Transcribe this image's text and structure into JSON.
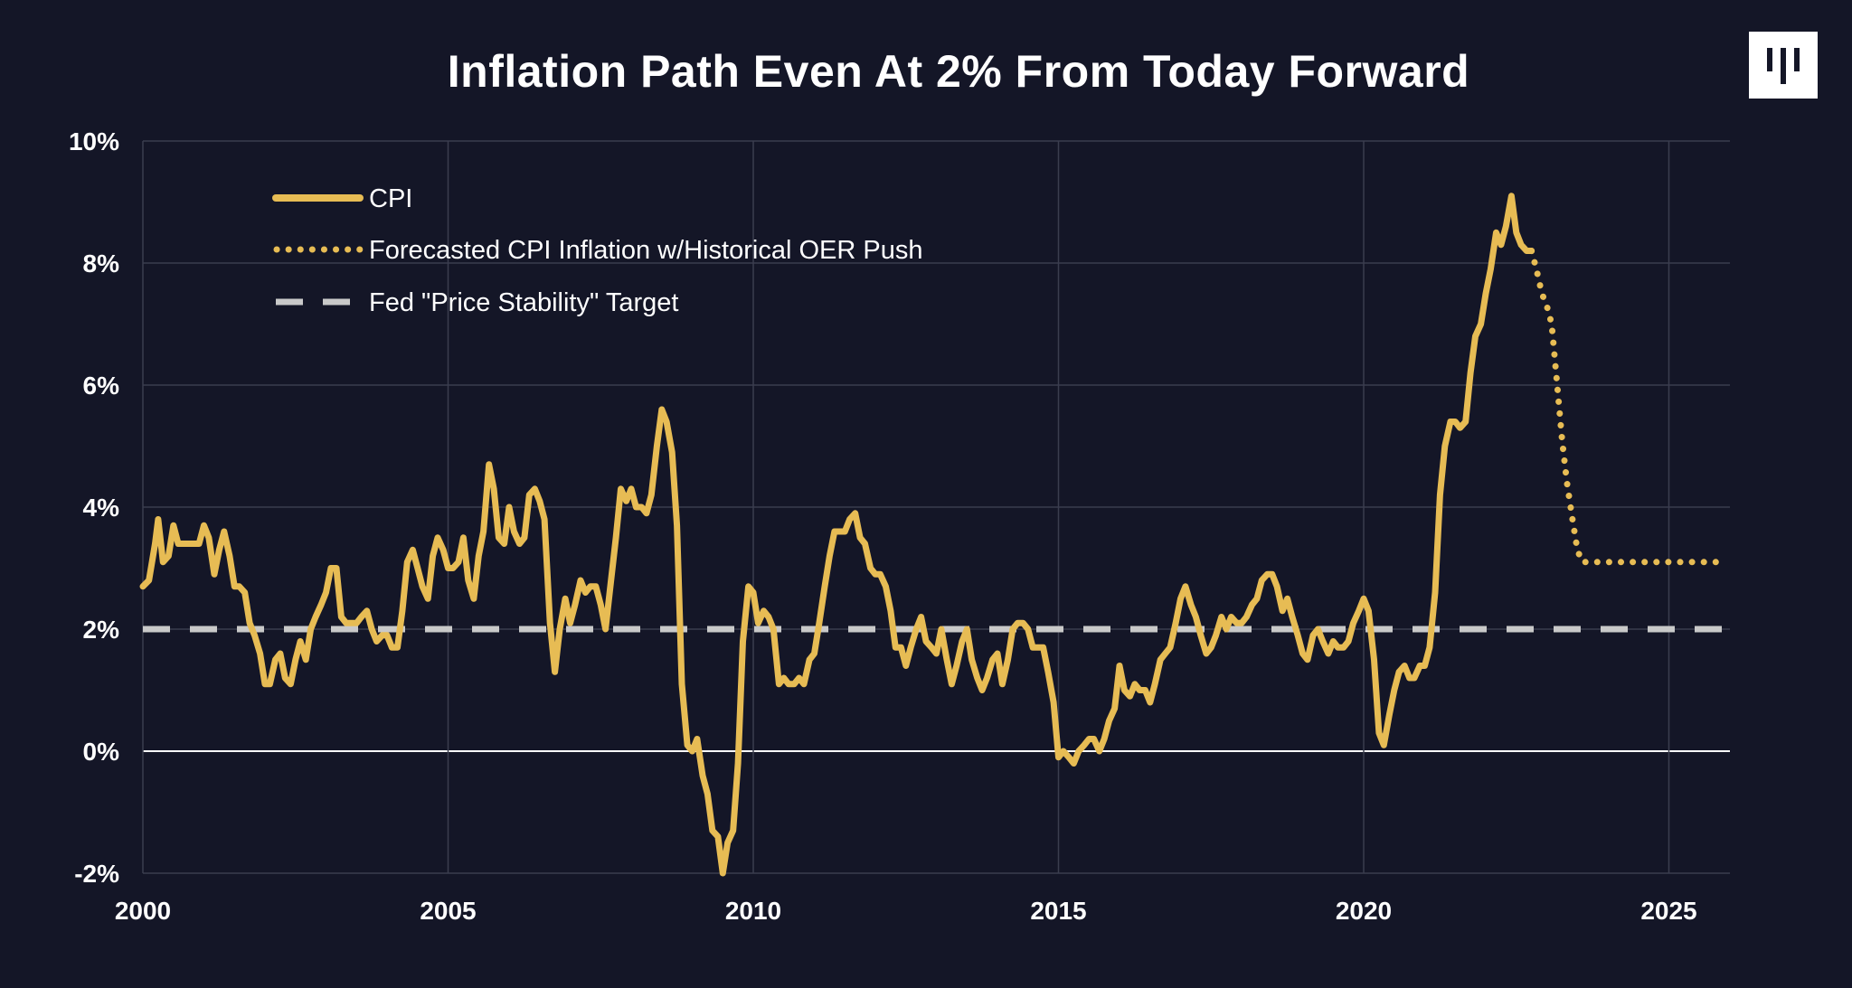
{
  "colors": {
    "background": "#141627",
    "cpi": "#E7BC54",
    "target": "#C9C9C9",
    "grid": "#3A3D4F",
    "zero_line": "#FFFFFF"
  },
  "logo": {
    "icon": "pantera-logo-icon"
  },
  "chart_data": {
    "type": "line",
    "title": "Inflation Path Even At 2% From Today Forward",
    "xlabel": "",
    "ylabel": "",
    "xlim": [
      2000,
      2026
    ],
    "ylim": [
      -2,
      10
    ],
    "x_ticks": [
      2000,
      2005,
      2010,
      2015,
      2020,
      2025
    ],
    "x_tick_labels": [
      "2000",
      "2005",
      "2010",
      "2015",
      "2020",
      "2025"
    ],
    "y_ticks": [
      -2,
      0,
      2,
      4,
      6,
      8,
      10
    ],
    "y_tick_labels": [
      "-2%",
      "0%",
      "2%",
      "4%",
      "6%",
      "8%",
      "10%"
    ],
    "grid": true,
    "legend_position": "top-left",
    "series": [
      {
        "name": "CPI",
        "style": "solid",
        "points": [
          [
            2000.0,
            2.7
          ],
          [
            2000.1,
            2.8
          ],
          [
            2000.2,
            3.4
          ],
          [
            2000.25,
            3.8
          ],
          [
            2000.33,
            3.1
          ],
          [
            2000.42,
            3.2
          ],
          [
            2000.5,
            3.7
          ],
          [
            2000.58,
            3.4
          ],
          [
            2000.67,
            3.4
          ],
          [
            2000.75,
            3.4
          ],
          [
            2000.83,
            3.4
          ],
          [
            2000.92,
            3.4
          ],
          [
            2001.0,
            3.7
          ],
          [
            2001.08,
            3.5
          ],
          [
            2001.17,
            2.9
          ],
          [
            2001.25,
            3.3
          ],
          [
            2001.33,
            3.6
          ],
          [
            2001.42,
            3.2
          ],
          [
            2001.5,
            2.7
          ],
          [
            2001.58,
            2.7
          ],
          [
            2001.67,
            2.6
          ],
          [
            2001.75,
            2.1
          ],
          [
            2001.83,
            1.9
          ],
          [
            2001.92,
            1.6
          ],
          [
            2002.0,
            1.1
          ],
          [
            2002.08,
            1.1
          ],
          [
            2002.17,
            1.5
          ],
          [
            2002.25,
            1.6
          ],
          [
            2002.33,
            1.2
          ],
          [
            2002.42,
            1.1
          ],
          [
            2002.5,
            1.5
          ],
          [
            2002.58,
            1.8
          ],
          [
            2002.67,
            1.5
          ],
          [
            2002.75,
            2.0
          ],
          [
            2002.83,
            2.2
          ],
          [
            2002.92,
            2.4
          ],
          [
            2003.0,
            2.6
          ],
          [
            2003.08,
            3.0
          ],
          [
            2003.17,
            3.0
          ],
          [
            2003.25,
            2.2
          ],
          [
            2003.33,
            2.1
          ],
          [
            2003.42,
            2.1
          ],
          [
            2003.5,
            2.1
          ],
          [
            2003.58,
            2.2
          ],
          [
            2003.67,
            2.3
          ],
          [
            2003.75,
            2.0
          ],
          [
            2003.83,
            1.8
          ],
          [
            2003.92,
            1.9
          ],
          [
            2004.0,
            1.9
          ],
          [
            2004.08,
            1.7
          ],
          [
            2004.17,
            1.7
          ],
          [
            2004.25,
            2.3
          ],
          [
            2004.33,
            3.1
          ],
          [
            2004.42,
            3.3
          ],
          [
            2004.5,
            3.0
          ],
          [
            2004.58,
            2.7
          ],
          [
            2004.67,
            2.5
          ],
          [
            2004.75,
            3.2
          ],
          [
            2004.83,
            3.5
          ],
          [
            2004.92,
            3.3
          ],
          [
            2005.0,
            3.0
          ],
          [
            2005.08,
            3.0
          ],
          [
            2005.17,
            3.1
          ],
          [
            2005.25,
            3.5
          ],
          [
            2005.33,
            2.8
          ],
          [
            2005.42,
            2.5
          ],
          [
            2005.5,
            3.2
          ],
          [
            2005.58,
            3.6
          ],
          [
            2005.67,
            4.7
          ],
          [
            2005.75,
            4.3
          ],
          [
            2005.83,
            3.5
          ],
          [
            2005.92,
            3.4
          ],
          [
            2006.0,
            4.0
          ],
          [
            2006.08,
            3.6
          ],
          [
            2006.17,
            3.4
          ],
          [
            2006.25,
            3.5
          ],
          [
            2006.33,
            4.2
          ],
          [
            2006.42,
            4.3
          ],
          [
            2006.5,
            4.1
          ],
          [
            2006.58,
            3.8
          ],
          [
            2006.67,
            2.1
          ],
          [
            2006.75,
            1.3
          ],
          [
            2006.83,
            2.0
          ],
          [
            2006.92,
            2.5
          ],
          [
            2007.0,
            2.1
          ],
          [
            2007.08,
            2.4
          ],
          [
            2007.17,
            2.8
          ],
          [
            2007.25,
            2.6
          ],
          [
            2007.33,
            2.7
          ],
          [
            2007.42,
            2.7
          ],
          [
            2007.5,
            2.4
          ],
          [
            2007.58,
            2.0
          ],
          [
            2007.67,
            2.8
          ],
          [
            2007.75,
            3.5
          ],
          [
            2007.83,
            4.3
          ],
          [
            2007.92,
            4.1
          ],
          [
            2008.0,
            4.3
          ],
          [
            2008.08,
            4.0
          ],
          [
            2008.17,
            4.0
          ],
          [
            2008.25,
            3.9
          ],
          [
            2008.33,
            4.2
          ],
          [
            2008.42,
            5.0
          ],
          [
            2008.5,
            5.6
          ],
          [
            2008.58,
            5.4
          ],
          [
            2008.67,
            4.9
          ],
          [
            2008.75,
            3.7
          ],
          [
            2008.83,
            1.1
          ],
          [
            2008.92,
            0.1
          ],
          [
            2009.0,
            0.0
          ],
          [
            2009.08,
            0.2
          ],
          [
            2009.17,
            -0.4
          ],
          [
            2009.25,
            -0.7
          ],
          [
            2009.33,
            -1.3
          ],
          [
            2009.42,
            -1.4
          ],
          [
            2009.5,
            -2.0
          ],
          [
            2009.58,
            -1.5
          ],
          [
            2009.67,
            -1.3
          ],
          [
            2009.75,
            -0.2
          ],
          [
            2009.83,
            1.8
          ],
          [
            2009.92,
            2.7
          ],
          [
            2010.0,
            2.6
          ],
          [
            2010.08,
            2.1
          ],
          [
            2010.17,
            2.3
          ],
          [
            2010.25,
            2.2
          ],
          [
            2010.33,
            2.0
          ],
          [
            2010.42,
            1.1
          ],
          [
            2010.5,
            1.2
          ],
          [
            2010.58,
            1.1
          ],
          [
            2010.67,
            1.1
          ],
          [
            2010.75,
            1.2
          ],
          [
            2010.83,
            1.1
          ],
          [
            2010.92,
            1.5
          ],
          [
            2011.0,
            1.6
          ],
          [
            2011.08,
            2.1
          ],
          [
            2011.17,
            2.7
          ],
          [
            2011.25,
            3.2
          ],
          [
            2011.33,
            3.6
          ],
          [
            2011.42,
            3.6
          ],
          [
            2011.5,
            3.6
          ],
          [
            2011.58,
            3.8
          ],
          [
            2011.67,
            3.9
          ],
          [
            2011.75,
            3.5
          ],
          [
            2011.83,
            3.4
          ],
          [
            2011.92,
            3.0
          ],
          [
            2012.0,
            2.9
          ],
          [
            2012.08,
            2.9
          ],
          [
            2012.17,
            2.7
          ],
          [
            2012.25,
            2.3
          ],
          [
            2012.33,
            1.7
          ],
          [
            2012.42,
            1.7
          ],
          [
            2012.5,
            1.4
          ],
          [
            2012.58,
            1.7
          ],
          [
            2012.67,
            2.0
          ],
          [
            2012.75,
            2.2
          ],
          [
            2012.83,
            1.8
          ],
          [
            2012.92,
            1.7
          ],
          [
            2013.0,
            1.6
          ],
          [
            2013.08,
            2.0
          ],
          [
            2013.17,
            1.5
          ],
          [
            2013.25,
            1.1
          ],
          [
            2013.33,
            1.4
          ],
          [
            2013.42,
            1.8
          ],
          [
            2013.5,
            2.0
          ],
          [
            2013.58,
            1.5
          ],
          [
            2013.67,
            1.2
          ],
          [
            2013.75,
            1.0
          ],
          [
            2013.83,
            1.2
          ],
          [
            2013.92,
            1.5
          ],
          [
            2014.0,
            1.6
          ],
          [
            2014.08,
            1.1
          ],
          [
            2014.17,
            1.5
          ],
          [
            2014.25,
            2.0
          ],
          [
            2014.33,
            2.1
          ],
          [
            2014.42,
            2.1
          ],
          [
            2014.5,
            2.0
          ],
          [
            2014.58,
            1.7
          ],
          [
            2014.67,
            1.7
          ],
          [
            2014.75,
            1.7
          ],
          [
            2014.83,
            1.3
          ],
          [
            2014.92,
            0.8
          ],
          [
            2015.0,
            -0.1
          ],
          [
            2015.08,
            0.0
          ],
          [
            2015.17,
            -0.1
          ],
          [
            2015.25,
            -0.2
          ],
          [
            2015.33,
            0.0
          ],
          [
            2015.42,
            0.1
          ],
          [
            2015.5,
            0.2
          ],
          [
            2015.58,
            0.2
          ],
          [
            2015.67,
            0.0
          ],
          [
            2015.75,
            0.2
          ],
          [
            2015.83,
            0.5
          ],
          [
            2015.92,
            0.7
          ],
          [
            2016.0,
            1.4
          ],
          [
            2016.08,
            1.0
          ],
          [
            2016.17,
            0.9
          ],
          [
            2016.25,
            1.1
          ],
          [
            2016.33,
            1.0
          ],
          [
            2016.42,
            1.0
          ],
          [
            2016.5,
            0.8
          ],
          [
            2016.58,
            1.1
          ],
          [
            2016.67,
            1.5
          ],
          [
            2016.75,
            1.6
          ],
          [
            2016.83,
            1.7
          ],
          [
            2016.92,
            2.1
          ],
          [
            2017.0,
            2.5
          ],
          [
            2017.08,
            2.7
          ],
          [
            2017.17,
            2.4
          ],
          [
            2017.25,
            2.2
          ],
          [
            2017.33,
            1.9
          ],
          [
            2017.42,
            1.6
          ],
          [
            2017.5,
            1.7
          ],
          [
            2017.58,
            1.9
          ],
          [
            2017.67,
            2.2
          ],
          [
            2017.75,
            2.0
          ],
          [
            2017.83,
            2.2
          ],
          [
            2017.92,
            2.1
          ],
          [
            2018.0,
            2.1
          ],
          [
            2018.08,
            2.2
          ],
          [
            2018.17,
            2.4
          ],
          [
            2018.25,
            2.5
          ],
          [
            2018.33,
            2.8
          ],
          [
            2018.42,
            2.9
          ],
          [
            2018.5,
            2.9
          ],
          [
            2018.58,
            2.7
          ],
          [
            2018.67,
            2.3
          ],
          [
            2018.75,
            2.5
          ],
          [
            2018.83,
            2.2
          ],
          [
            2018.92,
            1.9
          ],
          [
            2019.0,
            1.6
          ],
          [
            2019.08,
            1.5
          ],
          [
            2019.17,
            1.9
          ],
          [
            2019.25,
            2.0
          ],
          [
            2019.33,
            1.8
          ],
          [
            2019.42,
            1.6
          ],
          [
            2019.5,
            1.8
          ],
          [
            2019.58,
            1.7
          ],
          [
            2019.67,
            1.7
          ],
          [
            2019.75,
            1.8
          ],
          [
            2019.83,
            2.1
          ],
          [
            2019.92,
            2.3
          ],
          [
            2020.0,
            2.5
          ],
          [
            2020.08,
            2.3
          ],
          [
            2020.17,
            1.5
          ],
          [
            2020.25,
            0.3
          ],
          [
            2020.33,
            0.1
          ],
          [
            2020.42,
            0.6
          ],
          [
            2020.5,
            1.0
          ],
          [
            2020.58,
            1.3
          ],
          [
            2020.67,
            1.4
          ],
          [
            2020.75,
            1.2
          ],
          [
            2020.83,
            1.2
          ],
          [
            2020.92,
            1.4
          ],
          [
            2021.0,
            1.4
          ],
          [
            2021.08,
            1.7
          ],
          [
            2021.17,
            2.6
          ],
          [
            2021.25,
            4.2
          ],
          [
            2021.33,
            5.0
          ],
          [
            2021.42,
            5.4
          ],
          [
            2021.5,
            5.4
          ],
          [
            2021.58,
            5.3
          ],
          [
            2021.67,
            5.4
          ],
          [
            2021.75,
            6.2
          ],
          [
            2021.83,
            6.8
          ],
          [
            2021.92,
            7.0
          ],
          [
            2022.0,
            7.5
          ],
          [
            2022.08,
            7.9
          ],
          [
            2022.17,
            8.5
          ],
          [
            2022.25,
            8.3
          ],
          [
            2022.33,
            8.6
          ],
          [
            2022.42,
            9.1
          ],
          [
            2022.5,
            8.5
          ],
          [
            2022.58,
            8.3
          ],
          [
            2022.67,
            8.2
          ],
          [
            2022.75,
            8.2
          ]
        ]
      },
      {
        "name": "Forecasted CPI Inflation w/Historical OER Push",
        "style": "dotted",
        "points": [
          [
            2022.75,
            8.2
          ],
          [
            2022.83,
            7.9
          ],
          [
            2022.92,
            7.5
          ],
          [
            2023.0,
            7.3
          ],
          [
            2023.08,
            7.0
          ],
          [
            2023.17,
            6.0
          ],
          [
            2023.25,
            5.1
          ],
          [
            2023.33,
            4.4
          ],
          [
            2023.42,
            3.8
          ],
          [
            2023.5,
            3.3
          ],
          [
            2023.58,
            3.1
          ],
          [
            2023.75,
            3.1
          ],
          [
            2024.0,
            3.1
          ],
          [
            2024.5,
            3.1
          ],
          [
            2025.0,
            3.1
          ],
          [
            2025.5,
            3.1
          ],
          [
            2025.9,
            3.1
          ]
        ]
      },
      {
        "name": "Fed \"Price Stability\" Target",
        "style": "dashed",
        "points": [
          [
            2000.0,
            2.0
          ],
          [
            2026.0,
            2.0
          ]
        ]
      }
    ]
  }
}
